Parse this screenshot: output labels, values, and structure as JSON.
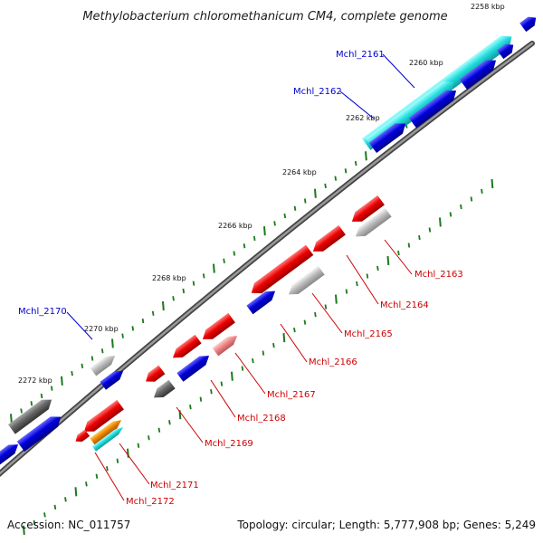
{
  "title": "Methylobacterium chloromethanicum CM4, complete genome",
  "ticks": [
    {
      "label": "2258 kbp"
    },
    {
      "label": "2260 kbp"
    },
    {
      "label": "2262 kbp"
    },
    {
      "label": "2264 kbp"
    },
    {
      "label": "2266 kbp"
    },
    {
      "label": "2268 kbp"
    },
    {
      "label": "2270 kbp"
    },
    {
      "label": "2272 kbp"
    }
  ],
  "gene_labels": {
    "forward": [
      "Mchl_2161",
      "Mchl_2162",
      "Mchl_2170"
    ],
    "reverse": [
      "Mchl_2163",
      "Mchl_2164",
      "Mchl_2165",
      "Mchl_2166",
      "Mchl_2167",
      "Mchl_2168",
      "Mchl_2169",
      "Mchl_2171",
      "Mchl_2172"
    ]
  },
  "colors": {
    "forward_label": "#0000cc",
    "reverse_label": "#cc0000",
    "gene_blue": "#0000dd",
    "gene_red": "#ee0000",
    "gene_cyan": "#22dddd",
    "gene_gray": "#bbbbbb",
    "gene_darkgray": "#666666",
    "gene_orange": "#ee8800",
    "gene_pink": "#ee8888",
    "backbone": "#666666",
    "tick": "#1a7a1a"
  },
  "footer": {
    "accession": "Accession: NC_011757",
    "summary": "Topology: circular; Length: 5,777,908 bp; Genes: 5,249"
  }
}
